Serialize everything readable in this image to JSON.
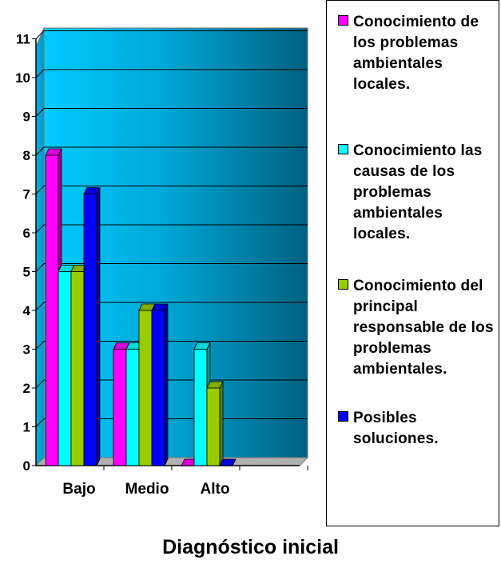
{
  "chart_data": {
    "type": "bar",
    "title": "Diagnóstico inicial",
    "categories": [
      "Bajo",
      "Medio",
      "Alto",
      ""
    ],
    "series": [
      {
        "name": "Conocimiento de los problemas ambientales locales.",
        "values": [
          8,
          3,
          0,
          null
        ],
        "color": "#ff00ff"
      },
      {
        "name": "Conocimiento las causas de los problemas ambientales locales.",
        "values": [
          5,
          3,
          3,
          null
        ],
        "color": "#00ffff"
      },
      {
        "name": "Conocimiento del principal responsable de los problemas ambientales.",
        "values": [
          5,
          4,
          2,
          null
        ],
        "color": "#99cc00"
      },
      {
        "name": "Posibles soluciones.",
        "values": [
          7,
          4,
          0,
          null
        ],
        "color": "#0000ff"
      }
    ],
    "y_ticks": [
      "0",
      "1",
      "2",
      "3",
      "4",
      "5",
      "6",
      "7",
      "8",
      "9",
      "10",
      "11"
    ],
    "ylim": [
      0,
      11
    ],
    "grid": true,
    "legend_position": "right",
    "background_gradient": [
      "#00ccff",
      "#006080"
    ]
  }
}
